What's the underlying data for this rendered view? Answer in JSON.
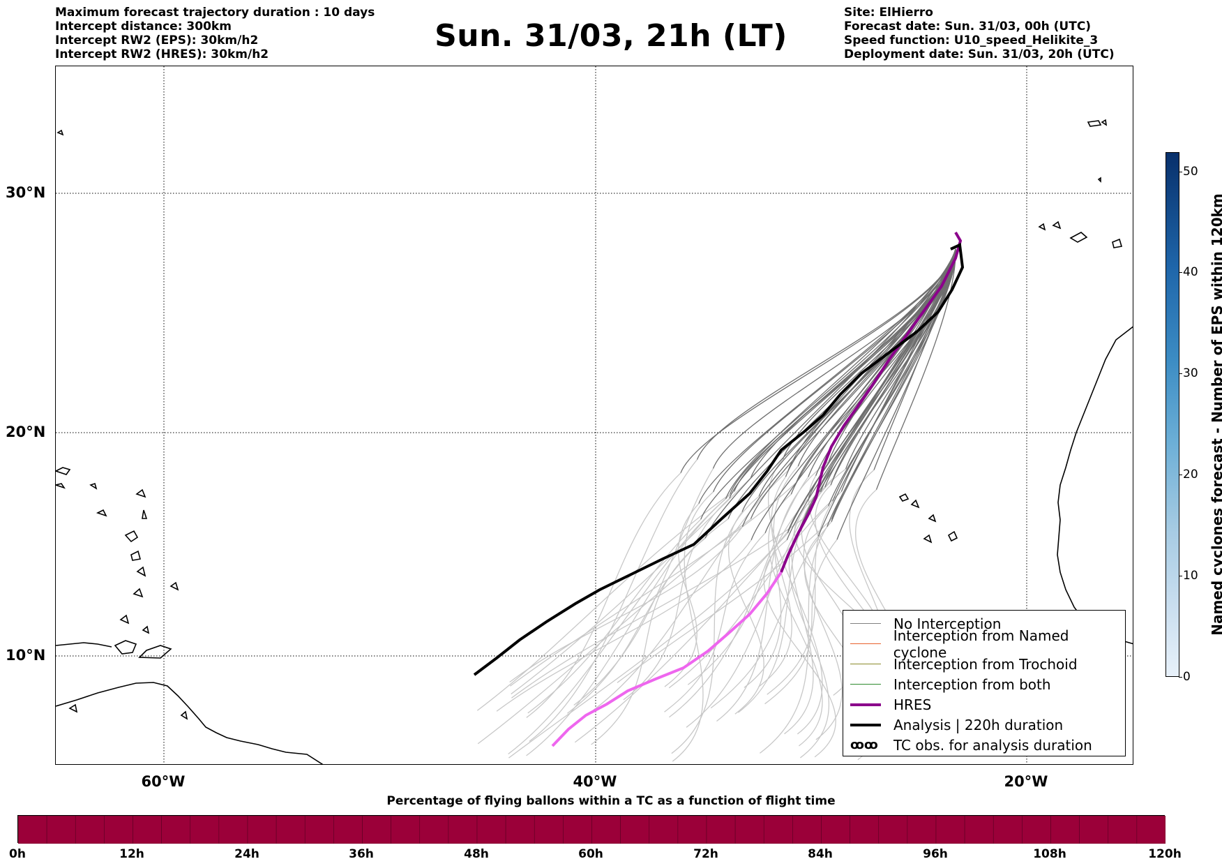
{
  "header": {
    "left_info": [
      "Maximum forecast trajectory duration : 10 days",
      "Intercept distance: 300km",
      "Intercept RW2 (EPS):  30km/h2",
      "Intercept RW2 (HRES): 30km/h2"
    ],
    "title": "Sun. 31/03, 21h (LT)",
    "right_info": [
      "Site: ElHierro",
      "Forecast date: Sun. 31/03, 00h (UTC)",
      "Speed function: U10_speed_Helikite_3",
      "Deployment date: Sun. 31/03, 20h (UTC)"
    ]
  },
  "map": {
    "lat_labels": [
      "30°N",
      "20°N",
      "10°N"
    ],
    "lon_labels": [
      "60°W",
      "40°W",
      "20°W"
    ],
    "grid": "dotted"
  },
  "legend": {
    "items": [
      {
        "label": "No Interception",
        "color": "#808080",
        "style": "thin"
      },
      {
        "label": "Interception from Named cyclone",
        "color": "#e8602c",
        "style": "thin"
      },
      {
        "label": "Interception from Trochoid",
        "color": "#8a8a2a",
        "style": "thin"
      },
      {
        "label": "Interception from both",
        "color": "#2e8b2e",
        "style": "thin"
      },
      {
        "label": "HRES",
        "color": "#8b008b",
        "style": "thick"
      },
      {
        "label": "Analysis | 220h duration",
        "color": "#000000",
        "style": "thick"
      },
      {
        "label": "TC obs. for analysis duration",
        "color": "#000000",
        "style": "symbol",
        "symbol": "ꝏꝏ"
      }
    ]
  },
  "time_bar": {
    "title": "Percentage of flying ballons within a TC as a function of flight time",
    "ticks": [
      "0h",
      "12h",
      "24h",
      "36h",
      "48h",
      "60h",
      "72h",
      "84h",
      "96h",
      "108h",
      "120h"
    ],
    "fill_color": "#9b0039",
    "percentage_all_bins": 0
  },
  "colorbar": {
    "label": "Named cyclones forecast - Number of EPS within 120km",
    "ticks": [
      "0",
      "10",
      "20",
      "30",
      "40",
      "50"
    ],
    "min": 0,
    "max": 52
  },
  "trajectory_colors": {
    "near_term": "#6e6e6e",
    "far_term": "#c8c8c8",
    "hres_near": "#8b008b",
    "hres_far": "#ee66ee",
    "analysis": "#000000"
  }
}
